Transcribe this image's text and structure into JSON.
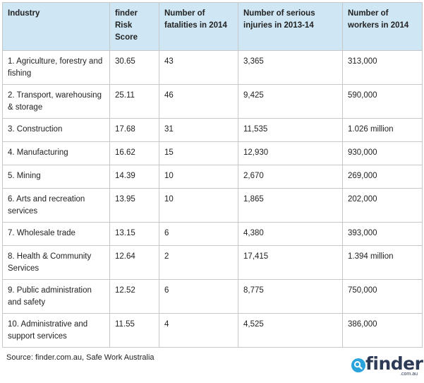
{
  "table": {
    "headers": [
      "Industry",
      "finder Risk Score",
      "Number of fatalities in 2014",
      "Number of serious injuries in 2013-14",
      "Number of workers in 2014"
    ],
    "rows": [
      [
        "1. Agriculture, forestry and fishing",
        "30.65",
        "43",
        "3,365",
        "313,000"
      ],
      [
        "2. Transport, warehousing & storage",
        "25.11",
        "46",
        "9,425",
        "590,000"
      ],
      [
        "3. Construction",
        "17.68",
        "31",
        "11,535",
        "1.026 million"
      ],
      [
        "4. Manufacturing",
        "16.62",
        "15",
        "12,930",
        "930,000"
      ],
      [
        "5. Mining",
        "14.39",
        "10",
        "2,670",
        "269,000"
      ],
      [
        "6. Arts and recreation services",
        "13.95",
        "10",
        "1,865",
        "202,000"
      ],
      [
        "7. Wholesale trade",
        "13.15",
        "6",
        "4,380",
        "393,000"
      ],
      [
        "8. Health & Community Services",
        "12.64",
        "2",
        "17,415",
        "1.394 million"
      ],
      [
        "9. Public administration and safety",
        "12.52",
        "6",
        "8,775",
        "750,000"
      ],
      [
        "10. Administrative and support services",
        "11.55",
        "4",
        "4,525",
        "386,000"
      ]
    ]
  },
  "source": "Source: finder.com.au, Safe Work Australia",
  "logo": {
    "icon": "search-magnifier-icon",
    "word": "finder",
    "domain": ".com.au"
  },
  "colors": {
    "header_bg": "#cfe6f4",
    "logo_blue": "#2aa3dd",
    "logo_text": "#2d3a55"
  }
}
